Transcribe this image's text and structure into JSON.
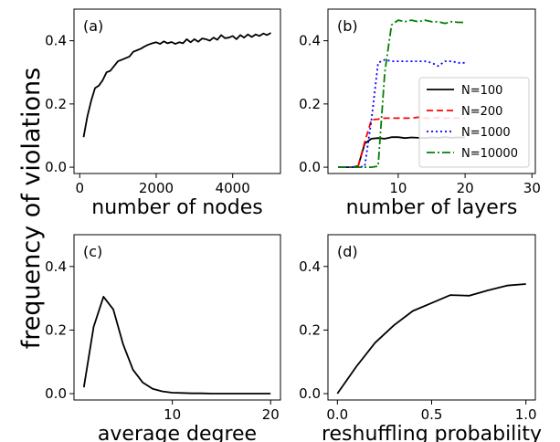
{
  "figure": {
    "ylabel": "frequency of violations"
  },
  "chart_data": [
    {
      "type": "line",
      "panel_label": "(a)",
      "xlabel": "number of nodes",
      "ylabel": "",
      "xlim": [
        -150,
        5250
      ],
      "ylim": [
        -0.02,
        0.5
      ],
      "xticks": [
        0,
        2000,
        4000
      ],
      "xtick_labels": [
        "0",
        "2000",
        "4000"
      ],
      "yticks": [
        0.0,
        0.2,
        0.4
      ],
      "ytick_labels": [
        "0.0",
        "0.2",
        "0.4"
      ],
      "grid": false,
      "legend": null,
      "series": [
        {
          "color": "#000000",
          "dash": "solid",
          "x": [
            100,
            200,
            300,
            400,
            500,
            600,
            700,
            800,
            900,
            1000,
            1100,
            1200,
            1300,
            1400,
            1500,
            1600,
            1700,
            1800,
            1900,
            2000,
            2100,
            2200,
            2300,
            2400,
            2500,
            2600,
            2700,
            2800,
            2900,
            3000,
            3100,
            3200,
            3300,
            3400,
            3500,
            3600,
            3700,
            3800,
            3900,
            4000,
            4100,
            4200,
            4300,
            4400,
            4500,
            4600,
            4700,
            4800,
            4900,
            5000
          ],
          "y": [
            0.095,
            0.16,
            0.21,
            0.25,
            0.258,
            0.275,
            0.3,
            0.305,
            0.32,
            0.335,
            0.34,
            0.345,
            0.35,
            0.365,
            0.37,
            0.375,
            0.382,
            0.388,
            0.392,
            0.395,
            0.39,
            0.398,
            0.392,
            0.396,
            0.39,
            0.395,
            0.392,
            0.405,
            0.395,
            0.405,
            0.397,
            0.407,
            0.405,
            0.4,
            0.41,
            0.403,
            0.418,
            0.408,
            0.41,
            0.415,
            0.405,
            0.418,
            0.41,
            0.42,
            0.412,
            0.42,
            0.415,
            0.423,
            0.418,
            0.425
          ]
        }
      ]
    },
    {
      "type": "line",
      "panel_label": "(b)",
      "xlabel": "number of layers",
      "ylabel": "",
      "xlim": [
        -0.5,
        30.5
      ],
      "ylim": [
        -0.02,
        0.5
      ],
      "xticks": [
        10,
        20,
        30
      ],
      "xtick_labels": [
        "10",
        "20",
        "30"
      ],
      "yticks": [
        0.0,
        0.2,
        0.4
      ],
      "ytick_labels": [
        "0.0",
        "0.2",
        "0.4"
      ],
      "grid": false,
      "legend": "lower-right",
      "series": [
        {
          "name": "N=100",
          "color": "#000000",
          "dash": "solid",
          "x": [
            1,
            2,
            3,
            4,
            5,
            6,
            7,
            8,
            9,
            10,
            11,
            12,
            13,
            14,
            15,
            16,
            17,
            18,
            19,
            20
          ],
          "y": [
            0,
            0,
            0,
            0.003,
            0.075,
            0.09,
            0.092,
            0.09,
            0.095,
            0.095,
            0.092,
            0.094,
            0.093,
            0.092,
            0.094,
            0.093,
            0.095,
            0.093,
            0.094,
            0.094
          ]
        },
        {
          "name": "N=200",
          "color": "#ff0000",
          "dash": "dashed",
          "x": [
            1,
            2,
            3,
            4,
            5,
            6,
            7,
            8,
            9,
            10,
            11,
            12,
            13,
            14,
            15,
            16,
            17,
            18,
            19,
            20
          ],
          "y": [
            0,
            0,
            0,
            0.003,
            0.08,
            0.15,
            0.152,
            0.155,
            0.155,
            0.155,
            0.155,
            0.155,
            0.158,
            0.155,
            0.155,
            0.157,
            0.155,
            0.155,
            0.155,
            0.155
          ]
        },
        {
          "name": "N=1000",
          "color": "#0000ff",
          "dash": "dotted",
          "x": [
            1,
            2,
            3,
            4,
            5,
            6,
            7,
            8,
            9,
            10,
            11,
            12,
            13,
            14,
            15,
            16,
            17,
            18,
            19,
            20
          ],
          "y": [
            0,
            0,
            0,
            0,
            0.003,
            0.15,
            0.33,
            0.34,
            0.335,
            0.335,
            0.335,
            0.335,
            0.335,
            0.335,
            0.33,
            0.32,
            0.335,
            0.335,
            0.33,
            0.33
          ]
        },
        {
          "name": "N=10000",
          "color": "#008000",
          "dash": "dashdot",
          "x": [
            1,
            2,
            3,
            4,
            5,
            6,
            7,
            8,
            9,
            10,
            11,
            12,
            13,
            14,
            15,
            16,
            17,
            18,
            19,
            20
          ],
          "y": [
            0,
            0,
            0,
            0,
            0,
            0,
            0.003,
            0.3,
            0.45,
            0.465,
            0.46,
            0.465,
            0.46,
            0.465,
            0.46,
            0.46,
            0.455,
            0.46,
            0.458,
            0.458
          ]
        }
      ]
    },
    {
      "type": "line",
      "panel_label": "(c)",
      "xlabel": "average degree",
      "ylabel": "",
      "xlim": [
        0,
        21
      ],
      "ylim": [
        -0.02,
        0.5
      ],
      "xticks": [
        10,
        20
      ],
      "xtick_labels": [
        "10",
        "20"
      ],
      "yticks": [
        0.0,
        0.2,
        0.4
      ],
      "ytick_labels": [
        "0.0",
        "0.2",
        "0.4"
      ],
      "grid": false,
      "legend": null,
      "series": [
        {
          "color": "#000000",
          "dash": "solid",
          "x": [
            1,
            2,
            3,
            4,
            5,
            6,
            7,
            8,
            9,
            10,
            11,
            12,
            13,
            14,
            15,
            16,
            17,
            18,
            19,
            20
          ],
          "y": [
            0.02,
            0.21,
            0.305,
            0.265,
            0.155,
            0.075,
            0.035,
            0.015,
            0.007,
            0.003,
            0.002,
            0.001,
            0.001,
            0,
            0,
            0,
            0,
            0,
            0,
            0
          ]
        }
      ]
    },
    {
      "type": "line",
      "panel_label": "(d)",
      "xlabel": "reshuffling probability",
      "ylabel": "",
      "xlim": [
        -0.05,
        1.05
      ],
      "ylim": [
        -0.02,
        0.5
      ],
      "xticks": [
        0.0,
        0.5,
        1.0
      ],
      "xtick_labels": [
        "0.0",
        "0.5",
        "1.0"
      ],
      "yticks": [
        0.0,
        0.2,
        0.4
      ],
      "ytick_labels": [
        "0.0",
        "0.2",
        "0.4"
      ],
      "grid": false,
      "legend": null,
      "series": [
        {
          "color": "#000000",
          "dash": "solid",
          "x": [
            0,
            0.1,
            0.2,
            0.3,
            0.4,
            0.5,
            0.6,
            0.7,
            0.8,
            0.9,
            1.0
          ],
          "y": [
            0.0,
            0.085,
            0.16,
            0.215,
            0.26,
            0.285,
            0.31,
            0.308,
            0.325,
            0.34,
            0.345
          ]
        }
      ]
    }
  ]
}
